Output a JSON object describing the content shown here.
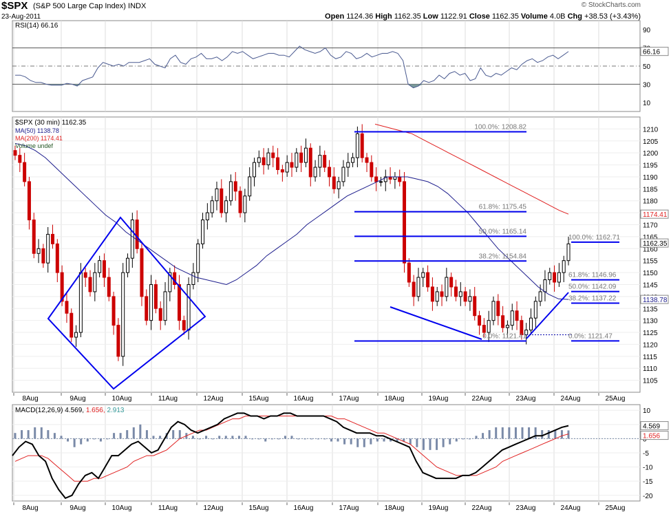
{
  "header": {
    "symbol": "$SPX",
    "name": "(S&P 500 Large Cap Index)",
    "exchange": "INDX",
    "date": "23-Aug-2011",
    "brand": "© StockCharts.com",
    "open_label": "Open",
    "open": "1124.36",
    "high_label": "High",
    "high": "1162.35",
    "low_label": "Low",
    "low": "1122.91",
    "close_label": "Close",
    "close": "1162.35",
    "volume_label": "Volume",
    "volume": "4.0B",
    "chg_label": "Chg",
    "chg": "+38.53 (+3.43%)"
  },
  "colors": {
    "up": "#000000",
    "down": "#cc0000",
    "ma50": "#1c1c8c",
    "ma200": "#e02020",
    "annotation": "#0000ee",
    "macd_line": "#000000",
    "signal": "#e02020",
    "histogram": "#7a8aa8",
    "rsi_line": "#4a5a90",
    "rsi_fill": "#7a9a9a"
  },
  "chart_data": [
    {
      "type": "line",
      "panel": "rsi",
      "legend": "RSI(14) 66.16",
      "last_value": 66.16,
      "last_label": "66.16",
      "ylim": [
        0,
        100
      ],
      "yticks": [
        10,
        30,
        50,
        70,
        90
      ],
      "overbought": 70,
      "oversold": 30,
      "midline": 50,
      "values": [
        40,
        40,
        38,
        34,
        32,
        32,
        30,
        29,
        29,
        29,
        31,
        30,
        28,
        34,
        36,
        38,
        48,
        54,
        52,
        50,
        52,
        50,
        54,
        54,
        54,
        56,
        58,
        52,
        50,
        48,
        58,
        62,
        54,
        52,
        58,
        60,
        64,
        58,
        58,
        60,
        56,
        60,
        66,
        64,
        66,
        62,
        58,
        60,
        62,
        64,
        64,
        62,
        62,
        60,
        66,
        72,
        68,
        66,
        64,
        66,
        70,
        62,
        58,
        60,
        66,
        64,
        58,
        60,
        64,
        60,
        62,
        64,
        64,
        66,
        64,
        56,
        30,
        26,
        28,
        34,
        32,
        34,
        40,
        36,
        42,
        44,
        40,
        42,
        34,
        36,
        48,
        40,
        38,
        42,
        40,
        44,
        48,
        46,
        52,
        56,
        58,
        54,
        56,
        60,
        62,
        58,
        62,
        66
      ]
    },
    {
      "type": "candlestick",
      "panel": "price",
      "legend": [
        "$SPX (30 min) 1162.35",
        "MA(50) 1138.78",
        "MA(200) 1174.41",
        "Volume undef"
      ],
      "ylim": [
        1100,
        1215
      ],
      "yticks": [
        1105,
        1110,
        1115,
        1120,
        1125,
        1130,
        1135,
        1140,
        1145,
        1150,
        1155,
        1160,
        1165,
        1170,
        1175,
        1180,
        1185,
        1190,
        1195,
        1200,
        1205,
        1210
      ],
      "x": [
        "8Aug",
        "9Aug",
        "10Aug",
        "11Aug",
        "12Aug",
        "15Aug",
        "16Aug",
        "17Aug",
        "18Aug",
        "19Aug",
        "22Aug",
        "23Aug",
        "24Aug",
        "25Aug"
      ],
      "close_label": "1162.35",
      "ma50_label": "1138.78",
      "ma200_label": "1174.41",
      "closes": [
        1199,
        1196,
        1188,
        1172,
        1158,
        1160,
        1154,
        1166,
        1162,
        1150,
        1138,
        1133,
        1123,
        1125,
        1150,
        1148,
        1142,
        1150,
        1155,
        1148,
        1140,
        1128,
        1115,
        1150,
        1156,
        1172,
        1160,
        1140,
        1130,
        1145,
        1135,
        1130,
        1142,
        1150,
        1145,
        1130,
        1126,
        1145,
        1150,
        1162,
        1172,
        1175,
        1180,
        1185,
        1175,
        1180,
        1188,
        1184,
        1175,
        1182,
        1190,
        1196,
        1198,
        1195,
        1200,
        1198,
        1193,
        1192,
        1196,
        1194,
        1200,
        1196,
        1202,
        1190,
        1194,
        1199,
        1194,
        1190,
        1185,
        1188,
        1194,
        1196,
        1198,
        1208,
        1198,
        1196,
        1190,
        1188,
        1188,
        1190,
        1189,
        1190,
        1188,
        1154,
        1146,
        1140,
        1148,
        1150,
        1144,
        1138,
        1142,
        1140,
        1148,
        1144,
        1140,
        1142,
        1138,
        1140,
        1132,
        1128,
        1125,
        1130,
        1138,
        1132,
        1127,
        1128,
        1134,
        1130,
        1124,
        1126,
        1131,
        1138,
        1142,
        1147,
        1150,
        1146,
        1150,
        1155,
        1162
      ],
      "ma50": [
        1204,
        1203,
        1201,
        1198,
        1194,
        1190,
        1186,
        1182,
        1178,
        1174,
        1171,
        1167,
        1164,
        1161,
        1158,
        1155,
        1152,
        1150,
        1148,
        1147,
        1146,
        1145,
        1147,
        1150,
        1153,
        1157,
        1160,
        1163,
        1166,
        1170,
        1173,
        1176,
        1179,
        1182,
        1184,
        1186,
        1188,
        1190,
        1190,
        1190,
        1189,
        1188,
        1186,
        1183,
        1179,
        1175,
        1170,
        1165,
        1160,
        1156,
        1152,
        1148,
        1144,
        1141,
        1139,
        1138.78
      ],
      "ma200": [
        1212,
        1211,
        1210,
        1209,
        1208,
        1206,
        1204,
        1202,
        1200,
        1198,
        1196,
        1194,
        1192,
        1190,
        1188,
        1186,
        1184,
        1182,
        1180,
        1178,
        1176,
        1174.41
      ],
      "fib_first": [
        {
          "label": "100.0%: 1208.82",
          "value": 1208.82
        },
        {
          "label": "61.8%: 1175.45",
          "value": 1175.45
        },
        {
          "label": "50.0%: 1165.14",
          "value": 1165.14
        },
        {
          "label": "38.2%: 1154.84",
          "value": 1154.84
        },
        {
          "label": "0.0%: 1121.41",
          "value": 1121.41
        }
      ],
      "fib_second": [
        {
          "label": "100.0%: 1162.71",
          "value": 1162.71
        },
        {
          "label": "61.8%: 1146.96",
          "value": 1146.96
        },
        {
          "label": "50.0%: 1142.09",
          "value": 1142.09
        },
        {
          "label": "38.2%: 1137.22",
          "value": 1137.22
        },
        {
          "label": "0.0%: 1121.47",
          "value": 1121.47
        }
      ]
    },
    {
      "type": "line",
      "panel": "macd",
      "legend_prefix": "MACD(12,26,9)",
      "macd_value": "4.569",
      "signal_value": "1.656",
      "hist_value": "2.913",
      "ylim": [
        -22,
        12
      ],
      "yticks": [
        10,
        5,
        0,
        -5,
        -10,
        -15,
        -20
      ],
      "macd": [
        -6,
        -3,
        -1,
        -2,
        -6,
        -8,
        -14,
        -18,
        -21,
        -20,
        -16,
        -13,
        -12,
        -14,
        -10,
        -6,
        -6,
        -4,
        -2,
        -1,
        -3,
        -5,
        -4,
        0,
        4,
        6,
        5,
        3,
        2,
        3,
        4,
        5,
        7,
        8,
        9,
        9,
        8,
        8,
        7,
        8,
        8,
        9,
        9,
        8,
        8,
        8,
        8,
        8,
        7,
        6,
        4,
        3,
        2,
        2,
        2,
        1,
        1,
        0,
        -1,
        -2,
        -3,
        -8,
        -12,
        -13,
        -14,
        -14,
        -14,
        -14,
        -13,
        -13,
        -12,
        -10,
        -8,
        -6,
        -4,
        -3,
        -2,
        -1,
        0,
        1,
        1,
        2,
        3,
        4,
        4.569
      ],
      "signal": [
        -8,
        -7,
        -6,
        -6,
        -6,
        -7,
        -9,
        -11,
        -13,
        -15,
        -15,
        -15,
        -14,
        -14,
        -13,
        -12,
        -11,
        -10,
        -8,
        -7,
        -6,
        -6,
        -5,
        -4,
        -2,
        0,
        1,
        2,
        3,
        3,
        4,
        5,
        6,
        7,
        7,
        8,
        8,
        8,
        8,
        8,
        8,
        8,
        8,
        8,
        8,
        8,
        8,
        8,
        8,
        7,
        7,
        6,
        5,
        4,
        3,
        2,
        2,
        1,
        0,
        -1,
        -2,
        -4,
        -6,
        -8,
        -10,
        -11,
        -12,
        -13,
        -13,
        -13,
        -13,
        -12,
        -11,
        -10,
        -8,
        -7,
        -6,
        -5,
        -4,
        -3,
        -2,
        -1,
        0,
        1,
        1.656
      ],
      "histogram": [
        2,
        3,
        3,
        4,
        4,
        3,
        2,
        1,
        -1,
        -3,
        -2,
        -1,
        0,
        -1,
        0,
        2,
        2,
        3,
        4,
        5,
        3,
        1,
        1,
        2,
        3,
        3,
        2,
        1,
        0,
        1,
        0,
        1,
        1,
        1,
        1,
        1,
        0,
        0,
        -1,
        0,
        0,
        1,
        1,
        0,
        0,
        0,
        0,
        0,
        -1,
        -1,
        -2,
        -2,
        -3,
        -3,
        -2,
        -1,
        -1,
        -1,
        -1,
        -1,
        -2,
        -3,
        -4,
        -4,
        -4,
        -3,
        -2,
        -1,
        0,
        0,
        1,
        2,
        3,
        4,
        4,
        4,
        4,
        4,
        4,
        4,
        3,
        3,
        3,
        3,
        2.913
      ]
    }
  ]
}
